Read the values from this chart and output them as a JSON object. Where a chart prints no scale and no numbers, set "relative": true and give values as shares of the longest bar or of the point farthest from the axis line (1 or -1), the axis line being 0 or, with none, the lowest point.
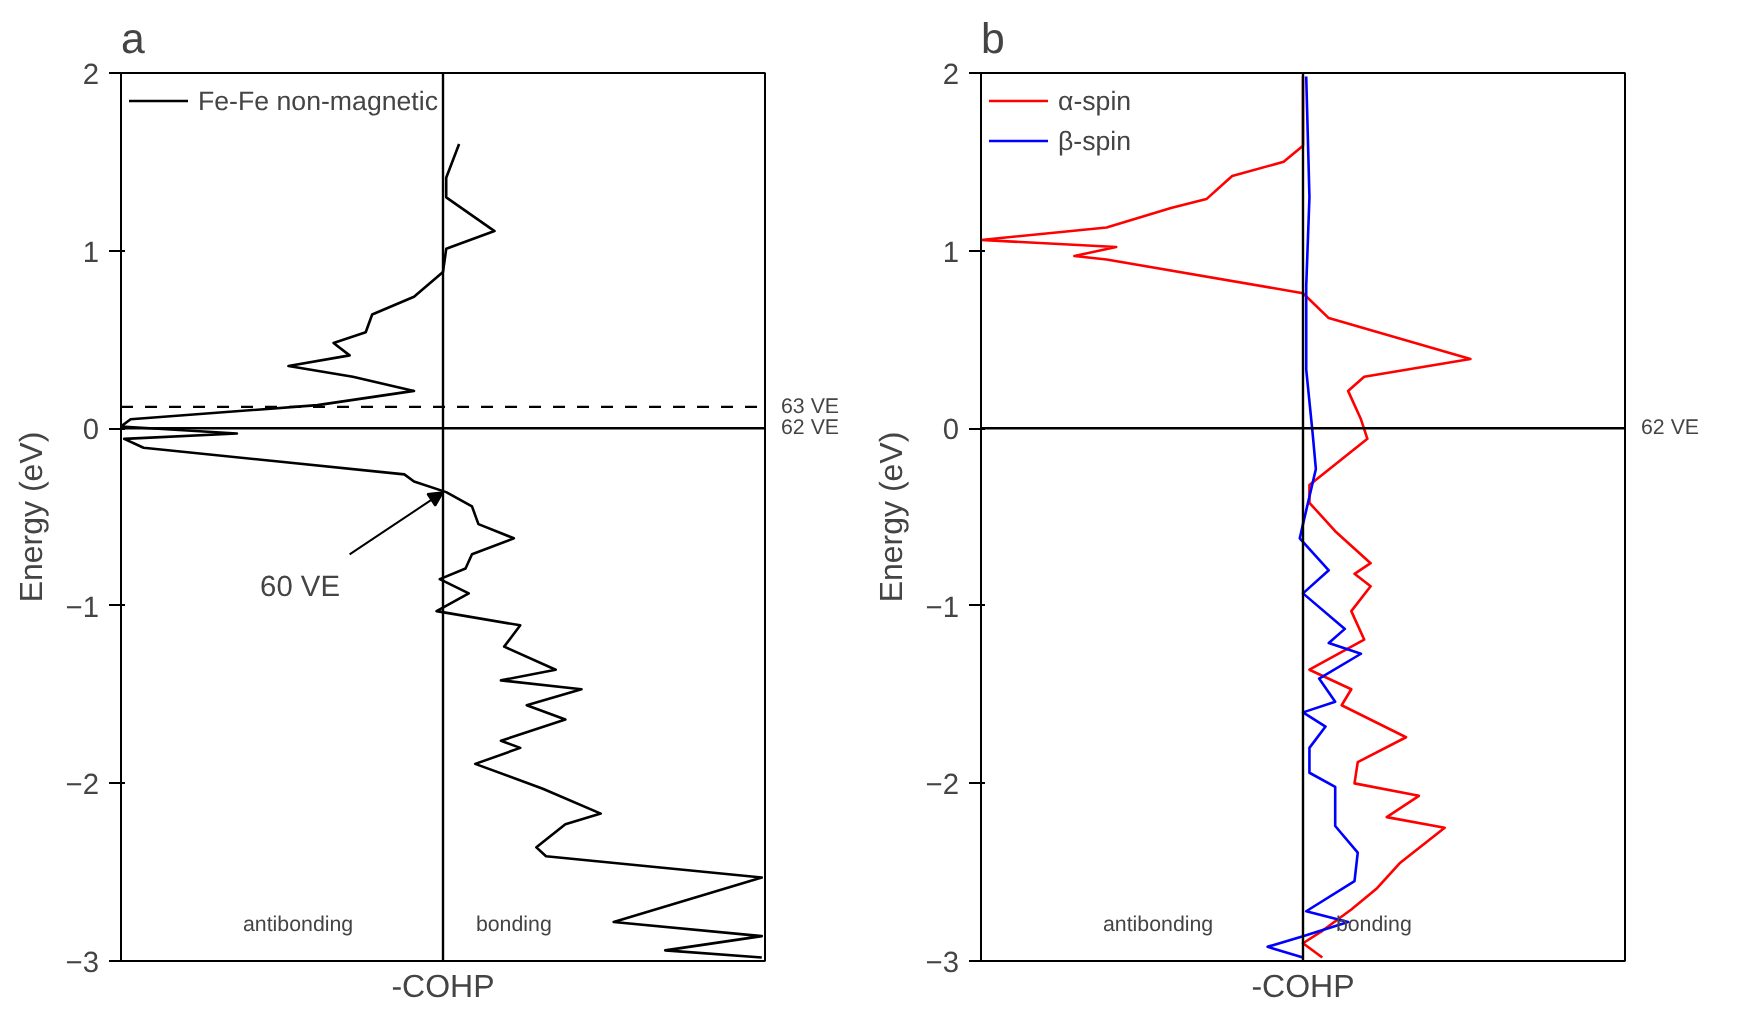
{
  "chart_data": [
    {
      "type": "line",
      "title": "a",
      "xlabel": "-COHP",
      "ylabel": "Energy (eV)",
      "orientation": "horizontal",
      "relative": true,
      "ylim": [
        -3,
        2
      ],
      "yticks": [
        -3,
        -2,
        -1,
        0,
        1,
        2
      ],
      "grid": false,
      "legend": "top left",
      "tick_labels": "y",
      "marker": "none",
      "line_style": "solid",
      "series": [
        {
          "name": "Fe-Fe non-magnetic",
          "color": "#000000",
          "values": [
            0.05,
            0.01,
            0.01,
            0.16,
            0.01,
            0.0,
            -0.09,
            -0.22,
            -0.24,
            -0.34,
            -0.29,
            -0.48,
            -0.28,
            -0.09,
            -0.39,
            -0.97,
            -1.0,
            -0.64,
            -0.99,
            -0.93,
            -0.12,
            -0.09,
            0.01,
            0.09,
            0.11,
            0.22,
            0.09,
            0.07,
            -0.01,
            0.08,
            -0.02,
            0.24,
            0.19,
            0.35,
            0.18,
            0.43,
            0.26,
            0.38,
            0.18,
            0.24,
            0.1,
            0.31,
            0.49,
            0.38,
            0.29,
            0.32,
            0.99,
            0.53,
            0.99,
            0.69,
            0.99
          ],
          "x": [
            1.6,
            1.41,
            1.3,
            1.11,
            1.01,
            0.88,
            0.74,
            0.64,
            0.54,
            0.48,
            0.41,
            0.35,
            0.29,
            0.21,
            0.13,
            0.05,
            0.01,
            -0.03,
            -0.06,
            -0.11,
            -0.26,
            -0.3,
            -0.36,
            -0.44,
            -0.54,
            -0.62,
            -0.71,
            -0.79,
            -0.85,
            -0.93,
            -1.03,
            -1.11,
            -1.23,
            -1.36,
            -1.42,
            -1.47,
            -1.56,
            -1.64,
            -1.76,
            -1.8,
            -1.89,
            -2.03,
            -2.17,
            -2.23,
            -2.36,
            -2.41,
            -2.53,
            -2.78,
            -2.86,
            -2.94,
            -2.98
          ]
        }
      ],
      "ref_lines": [
        {
          "axis": "y",
          "value": 0,
          "label": "62 VE",
          "line_style": "solid"
        },
        {
          "axis": "y",
          "value": 0.12,
          "label": "63 VE",
          "line_style": "dashed"
        }
      ],
      "annotations": [
        {
          "text": "60 VE",
          "x": 0,
          "y": -0.36
        },
        "antibonding",
        "bonding"
      ]
    },
    {
      "type": "line",
      "title": "b",
      "xlabel": "-COHP",
      "ylabel": "Energy (eV)",
      "orientation": "horizontal",
      "relative": true,
      "ylim": [
        -3,
        2
      ],
      "yticks": [
        -3,
        -2,
        -1,
        0,
        1,
        2
      ],
      "grid": false,
      "legend": "top left",
      "tick_labels": "y",
      "marker": "none",
      "line_style": "solid",
      "series": [
        {
          "name": "α-spin",
          "color": "#ff0000",
          "values": [
            0.0,
            0.0,
            0.0,
            -0.06,
            -0.22,
            -0.3,
            -0.41,
            -0.61,
            -1.0,
            -0.58,
            -0.71,
            -0.61,
            0.0,
            0.08,
            0.52,
            0.19,
            0.14,
            0.18,
            0.2,
            0.02,
            0.02,
            0.1,
            0.21,
            0.16,
            0.21,
            0.15,
            0.19,
            0.02,
            0.15,
            0.12,
            0.32,
            0.17,
            0.16,
            0.36,
            0.26,
            0.44,
            0.3,
            0.23,
            0.15,
            0.06,
            0.0,
            0.06
          ],
          "x": [
            1.98,
            1.7,
            1.59,
            1.5,
            1.42,
            1.29,
            1.24,
            1.13,
            1.06,
            1.02,
            0.97,
            0.95,
            0.76,
            0.62,
            0.39,
            0.29,
            0.21,
            0.05,
            -0.06,
            -0.32,
            -0.42,
            -0.58,
            -0.76,
            -0.82,
            -0.89,
            -1.03,
            -1.19,
            -1.36,
            -1.47,
            -1.56,
            -1.74,
            -1.88,
            -2.0,
            -2.07,
            -2.19,
            -2.25,
            -2.45,
            -2.59,
            -2.71,
            -2.83,
            -2.9,
            -2.98
          ]
        },
        {
          "name": "β-spin",
          "color": "#0000ff",
          "values": [
            0.01,
            0.02,
            0.01,
            0.01,
            0.03,
            0.04,
            0.0,
            -0.01,
            0.08,
            0.0,
            0.13,
            0.08,
            0.18,
            0.05,
            0.1,
            0.0,
            0.07,
            0.02,
            0.02,
            0.1,
            0.1,
            0.17,
            0.16,
            0.01,
            0.14,
            0.0,
            -0.11,
            0.0
          ],
          "x": [
            1.98,
            1.3,
            0.8,
            0.33,
            -0.03,
            -0.23,
            -0.54,
            -0.62,
            -0.8,
            -0.93,
            -1.13,
            -1.21,
            -1.27,
            -1.41,
            -1.54,
            -1.6,
            -1.68,
            -1.8,
            -1.94,
            -2.02,
            -2.24,
            -2.39,
            -2.55,
            -2.72,
            -2.78,
            -2.86,
            -2.92,
            -2.98
          ]
        }
      ],
      "ref_lines": [
        {
          "axis": "y",
          "value": 0,
          "label": "62 VE",
          "line_style": "solid"
        }
      ],
      "annotations": [
        "antibonding",
        "bonding"
      ]
    }
  ]
}
